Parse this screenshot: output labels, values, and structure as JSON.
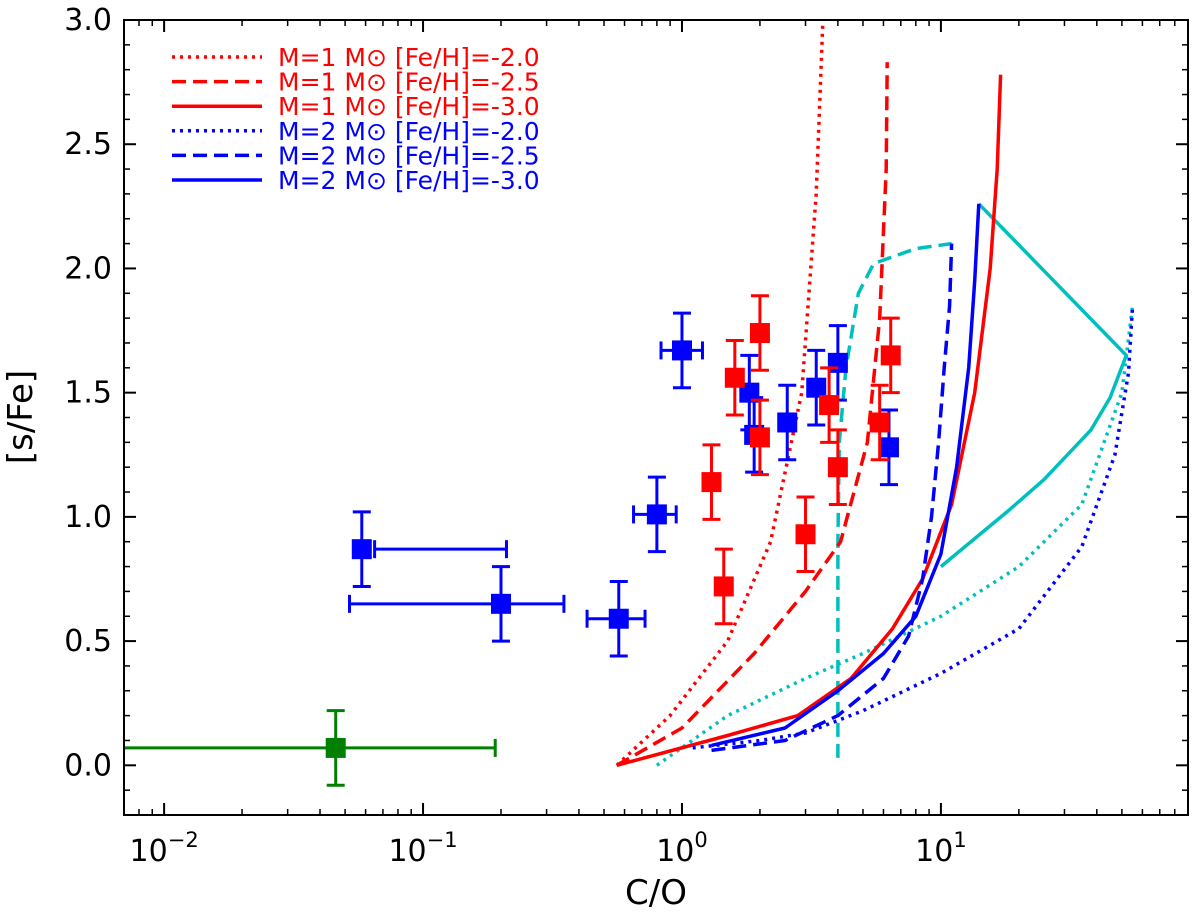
{
  "chart_data": {
    "type": "scatter",
    "xlabel": "C/O",
    "ylabel": "[s/Fe]",
    "xscale": "log",
    "xlim": [
      0.007,
      90
    ],
    "ylim": [
      -0.2,
      3.0
    ],
    "grid": false,
    "legend_placement": "top-left",
    "x_tick_labels": [
      {
        "value": 0.01,
        "base": "10",
        "exp": "−2"
      },
      {
        "value": 0.1,
        "base": "10",
        "exp": "−1"
      },
      {
        "value": 1,
        "base": "10",
        "exp": "0"
      },
      {
        "value": 10,
        "base": "10",
        "exp": "1"
      }
    ],
    "y_ticks": [
      0.0,
      0.5,
      1.0,
      1.5,
      2.0,
      2.5,
      3.0
    ],
    "y_tick_labels": [
      "0.0",
      "0.5",
      "1.0",
      "1.5",
      "2.0",
      "2.5",
      "3.0"
    ],
    "legend": [
      {
        "text": "M=1 M⊙ [Fe/H]=-2.0",
        "color": "#ff0000",
        "dash": "dotted"
      },
      {
        "text": "M=1 M⊙ [Fe/H]=-2.5",
        "color": "#ff0000",
        "dash": "dashed"
      },
      {
        "text": "M=1 M⊙ [Fe/H]=-3.0",
        "color": "#ff0000",
        "dash": "solid"
      },
      {
        "text": "M=2 M⊙ [Fe/H]=-2.0",
        "color": "#0000ff",
        "dash": "dotted"
      },
      {
        "text": "M=2 M⊙ [Fe/H]=-2.5",
        "color": "#0000ff",
        "dash": "dashed"
      },
      {
        "text": "M=2 M⊙ [Fe/H]=-3.0",
        "color": "#0000ff",
        "dash": "solid"
      }
    ],
    "models": [
      {
        "color": "#ff0000",
        "dash": "dotted",
        "points": [
          [
            0.56,
            0.0
          ],
          [
            0.9,
            0.2
          ],
          [
            1.5,
            0.5
          ],
          [
            2.2,
            0.9
          ],
          [
            2.9,
            1.5
          ],
          [
            3.3,
            2.3
          ],
          [
            3.5,
            3.0
          ]
        ]
      },
      {
        "color": "#ff0000",
        "dash": "dashed",
        "points": [
          [
            0.56,
            0.0
          ],
          [
            1.0,
            0.15
          ],
          [
            1.9,
            0.45
          ],
          [
            3.0,
            0.7
          ],
          [
            4.1,
            0.9
          ],
          [
            5.2,
            1.3
          ],
          [
            5.8,
            1.8
          ],
          [
            6.15,
            2.4
          ],
          [
            6.2,
            2.83
          ]
        ]
      },
      {
        "color": "#ff0000",
        "dash": "solid",
        "points": [
          [
            0.56,
            0.0
          ],
          [
            1.5,
            0.12
          ],
          [
            2.8,
            0.2
          ],
          [
            4.5,
            0.35
          ],
          [
            6.5,
            0.55
          ],
          [
            8.5,
            0.75
          ],
          [
            11,
            1.05
          ],
          [
            13.5,
            1.5
          ],
          [
            15.5,
            2.0
          ],
          [
            16.5,
            2.4
          ],
          [
            17,
            2.78
          ]
        ]
      },
      {
        "color": "#0000ff",
        "dash": "dotted",
        "points": [
          [
            1.1,
            0.07
          ],
          [
            2.0,
            0.1
          ],
          [
            3.0,
            0.13
          ],
          [
            5.0,
            0.22
          ],
          [
            10,
            0.37
          ],
          [
            20,
            0.55
          ],
          [
            35,
            0.88
          ],
          [
            47,
            1.25
          ],
          [
            53,
            1.58
          ],
          [
            55,
            1.85
          ]
        ]
      },
      {
        "color": "#0000ff",
        "dash": "dashed",
        "points": [
          [
            1.3,
            0.06
          ],
          [
            2.5,
            0.1
          ],
          [
            4.0,
            0.2
          ],
          [
            6.0,
            0.35
          ],
          [
            7.5,
            0.52
          ],
          [
            8.5,
            0.75
          ],
          [
            9.2,
            1.0
          ],
          [
            9.8,
            1.3
          ],
          [
            10.3,
            1.6
          ],
          [
            10.8,
            1.85
          ],
          [
            11,
            2.1
          ]
        ]
      },
      {
        "color": "#0000ff",
        "dash": "solid",
        "points": [
          [
            1.3,
            0.08
          ],
          [
            2.5,
            0.15
          ],
          [
            4.0,
            0.3
          ],
          [
            6.0,
            0.45
          ],
          [
            8.0,
            0.6
          ],
          [
            10,
            0.85
          ],
          [
            11.5,
            1.2
          ],
          [
            12.8,
            1.6
          ],
          [
            13.5,
            1.95
          ],
          [
            14,
            2.26
          ]
        ]
      }
    ],
    "cyan_lines": [
      {
        "color": "#00bfbf",
        "dash": "dotted",
        "points": [
          [
            0.8,
            0.0
          ],
          [
            1.5,
            0.2
          ],
          [
            3.0,
            0.35
          ],
          [
            5.0,
            0.45
          ],
          [
            10,
            0.6
          ],
          [
            20,
            0.8
          ],
          [
            35,
            1.05
          ],
          [
            50,
            1.5
          ],
          [
            55,
            1.85
          ]
        ]
      },
      {
        "color": "#00bfbf",
        "dash": "dashed",
        "points": [
          [
            4.0,
            0.03
          ],
          [
            4.0,
            0.9
          ],
          [
            4.05,
            1.3
          ],
          [
            4.3,
            1.6
          ],
          [
            4.8,
            1.9
          ],
          [
            5.5,
            2.02
          ],
          [
            8.0,
            2.08
          ],
          [
            11,
            2.1
          ]
        ]
      },
      {
        "color": "#00bfbf",
        "dash": "solid",
        "points": [
          [
            10,
            0.8
          ],
          [
            18,
            1.02
          ],
          [
            25,
            1.15
          ],
          [
            38,
            1.35
          ],
          [
            45,
            1.48
          ],
          [
            52,
            1.65
          ],
          [
            14,
            2.26
          ]
        ]
      }
    ],
    "observations": [
      {
        "x": 0.058,
        "y": 0.87,
        "xerr": [
          0.065,
          0.21
        ],
        "yerr": 0.15,
        "color": "#0000ff"
      },
      {
        "x": 0.2,
        "y": 0.65,
        "xerr": [
          0.052,
          0.35
        ],
        "yerr": 0.15,
        "color": "#0000ff"
      },
      {
        "x": 0.57,
        "y": 0.59,
        "xerr": [
          0.43,
          0.72
        ],
        "yerr": 0.15,
        "color": "#0000ff"
      },
      {
        "x": 0.8,
        "y": 1.01,
        "xerr": [
          0.65,
          0.95
        ],
        "yerr": 0.15,
        "color": "#0000ff"
      },
      {
        "x": 1.0,
        "y": 1.67,
        "xerr": [
          0.83,
          1.2
        ],
        "yerr": 0.15,
        "color": "#0000ff"
      },
      {
        "x": 1.82,
        "y": 1.5,
        "yerr": 0.15,
        "color": "#0000ff"
      },
      {
        "x": 1.9,
        "y": 1.33,
        "yerr": 0.15,
        "color": "#0000ff"
      },
      {
        "x": 2.55,
        "y": 1.38,
        "yerr": 0.15,
        "color": "#0000ff"
      },
      {
        "x": 3.3,
        "y": 1.52,
        "yerr": 0.15,
        "color": "#0000ff"
      },
      {
        "x": 4.0,
        "y": 1.62,
        "yerr": 0.15,
        "color": "#0000ff"
      },
      {
        "x": 6.3,
        "y": 1.28,
        "yerr": 0.15,
        "color": "#0000ff"
      },
      {
        "x": 1.3,
        "y": 1.14,
        "yerr": 0.15,
        "color": "#ff0000"
      },
      {
        "x": 1.45,
        "y": 0.72,
        "yerr": 0.15,
        "color": "#ff0000"
      },
      {
        "x": 1.6,
        "y": 1.56,
        "yerr": 0.15,
        "color": "#ff0000"
      },
      {
        "x": 2.0,
        "y": 1.74,
        "yerr": 0.15,
        "color": "#ff0000"
      },
      {
        "x": 2.0,
        "y": 1.32,
        "yerr": 0.15,
        "color": "#ff0000"
      },
      {
        "x": 3.0,
        "y": 0.93,
        "yerr": 0.15,
        "color": "#ff0000"
      },
      {
        "x": 3.7,
        "y": 1.45,
        "yerr": 0.15,
        "color": "#ff0000"
      },
      {
        "x": 4.0,
        "y": 1.2,
        "yerr": 0.15,
        "color": "#ff0000"
      },
      {
        "x": 5.8,
        "y": 1.38,
        "yerr": 0.15,
        "color": "#ff0000"
      },
      {
        "x": 6.4,
        "y": 1.65,
        "yerr": 0.15,
        "color": "#ff0000"
      },
      {
        "x": 0.046,
        "y": 0.07,
        "xerr": [
          0.001,
          0.19
        ],
        "yerr": 0.15,
        "color": "#008000"
      }
    ]
  }
}
